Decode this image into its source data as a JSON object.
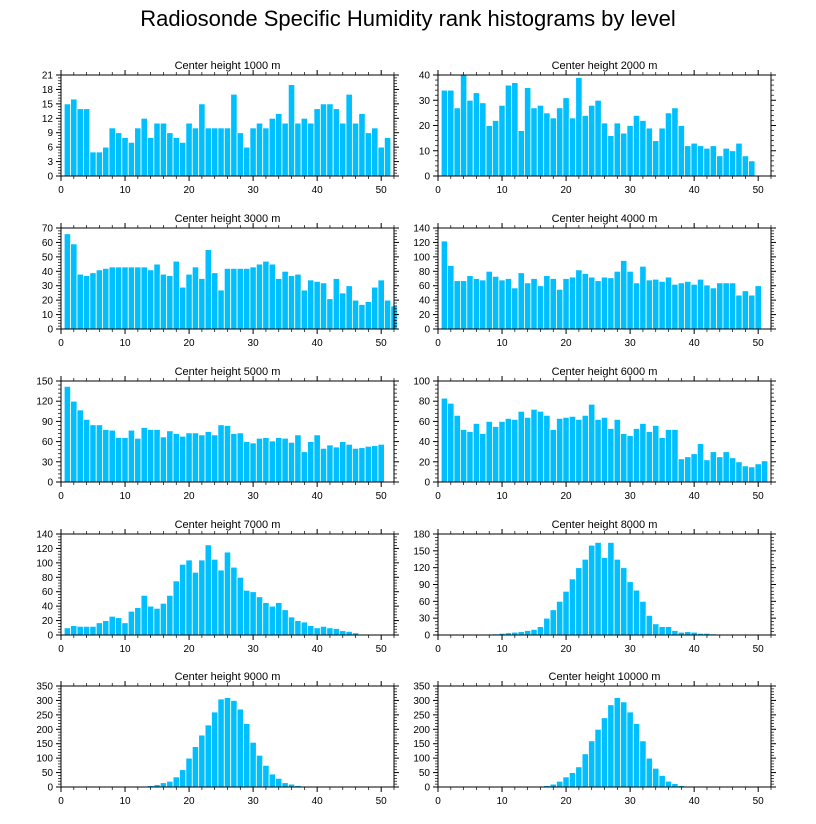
{
  "figure_title": "Radiosonde Specific Humidity rank histograms by level",
  "colors": {
    "bar": "#00bfff",
    "bar_edge": "#ffffff",
    "axis": "#000000"
  },
  "chart_data": [
    {
      "type": "bar",
      "title": "Center height 1000 m",
      "xlim": [
        0,
        52
      ],
      "ylim": [
        0,
        21
      ],
      "xticks": [
        0,
        10,
        20,
        30,
        40,
        50
      ],
      "yticks": [
        0,
        3,
        6,
        9,
        12,
        15,
        18,
        21
      ],
      "values": [
        15,
        16,
        14,
        14,
        5,
        5,
        6,
        10,
        9,
        8,
        7,
        10,
        12,
        8,
        11,
        11,
        9,
        8,
        7,
        11,
        10,
        15,
        10,
        10,
        10,
        10,
        17,
        9,
        6,
        10,
        11,
        10,
        12,
        13,
        11,
        19,
        11,
        12,
        11,
        14,
        15,
        15,
        14,
        11,
        17,
        11,
        13,
        9,
        10,
        6,
        8
      ]
    },
    {
      "type": "bar",
      "title": "Center height 2000 m",
      "xlim": [
        0,
        52
      ],
      "ylim": [
        0,
        40
      ],
      "xticks": [
        0,
        10,
        20,
        30,
        40,
        50
      ],
      "yticks": [
        0,
        10,
        20,
        30,
        40
      ],
      "values": [
        34,
        34,
        27,
        40,
        30,
        33,
        29,
        20,
        22,
        28,
        36,
        37,
        18,
        35,
        27,
        28,
        25,
        23,
        27,
        31,
        23,
        39,
        24,
        28,
        30,
        21,
        16,
        21,
        17,
        20,
        24,
        22,
        19,
        14,
        19,
        25,
        27,
        20,
        12,
        13,
        12,
        11,
        12,
        8,
        11,
        10,
        13,
        8,
        6
      ]
    },
    {
      "type": "bar",
      "title": "Center height 3000 m",
      "xlim": [
        0,
        52
      ],
      "ylim": [
        0,
        70
      ],
      "xticks": [
        0,
        10,
        20,
        30,
        40,
        50
      ],
      "yticks": [
        0,
        10,
        20,
        30,
        40,
        50,
        60,
        70
      ],
      "values": [
        66,
        59,
        38,
        37,
        39,
        41,
        42,
        43,
        43,
        43,
        43,
        43,
        43,
        41,
        45,
        38,
        37,
        47,
        29,
        38,
        43,
        35,
        55,
        39,
        27,
        42,
        42,
        42,
        42,
        43,
        45,
        47,
        45,
        35,
        40,
        37,
        38,
        27,
        34,
        33,
        32,
        21,
        35,
        25,
        30,
        20,
        17,
        19,
        29,
        34,
        20,
        16
      ]
    },
    {
      "type": "bar",
      "title": "Center height 4000 m",
      "xlim": [
        0,
        52
      ],
      "ylim": [
        0,
        140
      ],
      "xticks": [
        0,
        10,
        20,
        30,
        40,
        50
      ],
      "yticks": [
        0,
        20,
        40,
        60,
        80,
        100,
        120,
        140
      ],
      "values": [
        122,
        88,
        67,
        67,
        74,
        70,
        68,
        80,
        73,
        68,
        70,
        57,
        78,
        64,
        70,
        60,
        74,
        70,
        55,
        70,
        72,
        82,
        77,
        72,
        67,
        72,
        71,
        80,
        95,
        80,
        64,
        87,
        68,
        69,
        66,
        72,
        62,
        64,
        66,
        62,
        69,
        61,
        57,
        64,
        64,
        64,
        47,
        53,
        47,
        60
      ]
    },
    {
      "type": "bar",
      "title": "Center height 5000 m",
      "xlim": [
        0,
        52
      ],
      "ylim": [
        0,
        150
      ],
      "xticks": [
        0,
        10,
        20,
        30,
        40,
        50
      ],
      "yticks": [
        0,
        30,
        60,
        90,
        120,
        150
      ],
      "values": [
        142,
        120,
        107,
        93,
        85,
        85,
        78,
        77,
        66,
        66,
        77,
        65,
        81,
        78,
        78,
        67,
        76,
        72,
        68,
        73,
        73,
        70,
        75,
        70,
        85,
        84,
        72,
        73,
        60,
        58,
        65,
        66,
        61,
        66,
        65,
        59,
        70,
        45,
        60,
        70,
        50,
        55,
        52,
        60,
        56,
        50,
        51,
        53,
        54,
        56
      ]
    },
    {
      "type": "bar",
      "title": "Center height 6000 m",
      "xlim": [
        0,
        52
      ],
      "ylim": [
        0,
        100
      ],
      "xticks": [
        0,
        10,
        20,
        30,
        40,
        50
      ],
      "yticks": [
        0,
        20,
        40,
        60,
        80,
        100
      ],
      "values": [
        83,
        78,
        66,
        52,
        50,
        58,
        48,
        60,
        55,
        60,
        63,
        62,
        70,
        64,
        72,
        70,
        66,
        52,
        63,
        64,
        65,
        62,
        66,
        77,
        62,
        64,
        53,
        62,
        48,
        46,
        53,
        58,
        50,
        56,
        44,
        52,
        52,
        23,
        25,
        28,
        38,
        22,
        30,
        25,
        30,
        24,
        20,
        16,
        15,
        18,
        21
      ]
    },
    {
      "type": "bar",
      "title": "Center height 7000 m",
      "xlim": [
        0,
        52
      ],
      "ylim": [
        0,
        140
      ],
      "xticks": [
        0,
        10,
        20,
        30,
        40,
        50
      ],
      "yticks": [
        0,
        20,
        40,
        60,
        80,
        100,
        120,
        140
      ],
      "values": [
        10,
        13,
        12,
        12,
        12,
        17,
        20,
        26,
        24,
        17,
        33,
        38,
        55,
        40,
        37,
        44,
        55,
        75,
        98,
        104,
        87,
        104,
        125,
        105,
        90,
        115,
        94,
        80,
        62,
        60,
        53,
        45,
        40,
        45,
        35,
        25,
        20,
        18,
        13,
        10,
        12,
        10,
        9,
        6,
        5,
        3
      ]
    },
    {
      "type": "bar",
      "title": "Center height 8000 m",
      "xlim": [
        0,
        52
      ],
      "ylim": [
        0,
        180
      ],
      "xticks": [
        0,
        10,
        20,
        30,
        40,
        50
      ],
      "yticks": [
        0,
        30,
        60,
        90,
        120,
        150,
        180
      ],
      "values": [
        0,
        0,
        0,
        0,
        0,
        0,
        1,
        1,
        2,
        3,
        4,
        5,
        6,
        8,
        10,
        15,
        30,
        45,
        60,
        78,
        100,
        120,
        135,
        160,
        165,
        138,
        165,
        135,
        120,
        95,
        80,
        60,
        35,
        20,
        15,
        15,
        8,
        5,
        6,
        5,
        3,
        3,
        2,
        1,
        1,
        0,
        0,
        0,
        0
      ]
    },
    {
      "type": "bar",
      "title": "Center height 9000 m",
      "xlim": [
        0,
        52
      ],
      "ylim": [
        0,
        350
      ],
      "xticks": [
        0,
        10,
        20,
        30,
        40,
        50
      ],
      "yticks": [
        0,
        50,
        100,
        150,
        200,
        250,
        300,
        350
      ],
      "values": [
        0,
        0,
        0,
        0,
        0,
        0,
        0,
        0,
        0,
        0,
        0,
        2,
        3,
        5,
        8,
        15,
        20,
        35,
        60,
        100,
        140,
        180,
        215,
        260,
        305,
        310,
        300,
        270,
        220,
        155,
        110,
        75,
        45,
        30,
        15,
        10,
        5,
        3,
        1,
        0,
        0,
        0,
        0,
        0,
        0,
        0,
        0,
        0,
        0,
        0,
        0
      ]
    },
    {
      "type": "bar",
      "title": "Center height 10000 m",
      "xlim": [
        0,
        52
      ],
      "ylim": [
        0,
        350
      ],
      "xticks": [
        0,
        10,
        20,
        30,
        40,
        50
      ],
      "yticks": [
        0,
        50,
        100,
        150,
        200,
        250,
        300,
        350
      ],
      "values": [
        0,
        0,
        0,
        0,
        0,
        0,
        0,
        0,
        0,
        0,
        0,
        0,
        0,
        0,
        1,
        2,
        5,
        10,
        20,
        35,
        50,
        70,
        115,
        160,
        200,
        240,
        285,
        310,
        295,
        260,
        220,
        160,
        100,
        65,
        40,
        20,
        12,
        5,
        3,
        2,
        1,
        0,
        0,
        0,
        0,
        0,
        0,
        0,
        0,
        0,
        0
      ]
    }
  ]
}
